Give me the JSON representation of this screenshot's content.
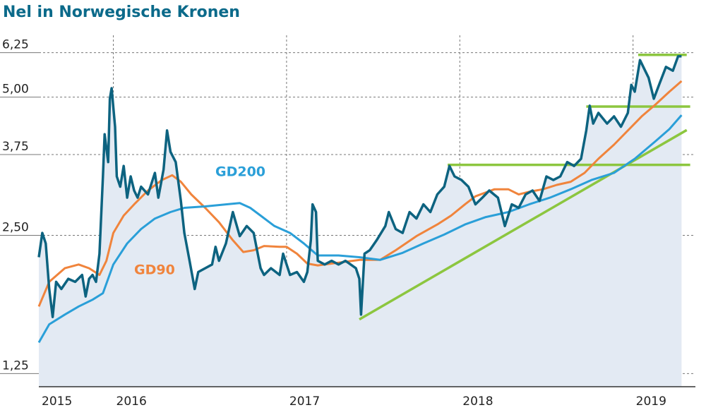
{
  "chart_data": {
    "type": "line",
    "title": "Nel in Norwegische Kronen",
    "log_scale": true,
    "grid": true,
    "xlim": [
      2015.57,
      2019.36
    ],
    "xticks": [
      2015,
      2016,
      2017,
      2018,
      2019
    ],
    "ylim": [
      1.17,
      6.7
    ],
    "yticks": [
      {
        "value": 1.25,
        "label": "1,25"
      },
      {
        "value": 2.5,
        "label": "2,50"
      },
      {
        "value": 3.75,
        "label": "3,75"
      },
      {
        "value": 5,
        "label": "5,00"
      },
      {
        "value": 6.25,
        "label": "6,25"
      }
    ],
    "series": [
      {
        "color": "#0d6380",
        "area_color": "#e3eaf3",
        "x": [
          2015.57,
          2015.59,
          2015.61,
          2015.63,
          2015.65,
          2015.67,
          2015.7,
          2015.74,
          2015.78,
          2015.82,
          2015.84,
          2015.86,
          2015.88,
          2015.9,
          2015.92,
          2015.94,
          2015.95,
          2015.97,
          2015.98,
          2015.99,
          2016.01,
          2016.02,
          2016.04,
          2016.06,
          2016.08,
          2016.1,
          2016.12,
          2016.14,
          2016.16,
          2016.2,
          2016.24,
          2016.26,
          2016.29,
          2016.31,
          2016.33,
          2016.36,
          2016.39,
          2016.41,
          2016.44,
          2016.47,
          2016.49,
          2016.53,
          2016.57,
          2016.59,
          2016.61,
          2016.65,
          2016.69,
          2016.73,
          2016.77,
          2016.81,
          2016.85,
          2016.87,
          2016.91,
          2016.96,
          2016.98,
          2017.02,
          2017.06,
          2017.1,
          2017.12,
          2017.14,
          2017.15,
          2017.17,
          2017.18,
          2017.22,
          2017.26,
          2017.3,
          2017.34,
          2017.4,
          2017.42,
          2017.43,
          2017.45,
          2017.48,
          2017.52,
          2017.57,
          2017.59,
          2017.63,
          2017.67,
          2017.71,
          2017.75,
          2017.79,
          2017.83,
          2017.87,
          2017.91,
          2017.94,
          2017.97,
          2018.01,
          2018.05,
          2018.09,
          2018.13,
          2018.17,
          2018.22,
          2018.26,
          2018.3,
          2018.34,
          2018.38,
          2018.42,
          2018.46,
          2018.5,
          2018.54,
          2018.58,
          2018.62,
          2018.66,
          2018.7,
          2018.73,
          2018.75,
          2018.77,
          2018.8,
          2018.85,
          2018.89,
          2018.93,
          2018.97,
          2018.99,
          2019.01,
          2019.04,
          2019.07,
          2019.09,
          2019.12,
          2019.15,
          2019.19,
          2019.23,
          2019.26,
          2019.28
        ],
        "values": [
          2.24,
          2.53,
          2.4,
          1.91,
          1.66,
          1.98,
          1.91,
          2.01,
          1.98,
          2.05,
          1.84,
          2.01,
          2.05,
          1.98,
          2.28,
          3.36,
          4.15,
          3.61,
          4.96,
          5.23,
          4.31,
          3.36,
          3.19,
          3.54,
          3.02,
          3.36,
          3.13,
          3.02,
          3.19,
          3.07,
          3.42,
          3.02,
          3.48,
          4.23,
          3.8,
          3.61,
          2.97,
          2.53,
          2.2,
          1.91,
          2.08,
          2.12,
          2.16,
          2.36,
          2.2,
          2.4,
          2.81,
          2.49,
          2.62,
          2.53,
          2.12,
          2.05,
          2.12,
          2.05,
          2.28,
          2.05,
          2.08,
          1.98,
          2.08,
          2.44,
          2.92,
          2.81,
          2.2,
          2.16,
          2.2,
          2.16,
          2.2,
          2.12,
          2.01,
          1.68,
          2.28,
          2.32,
          2.44,
          2.62,
          2.81,
          2.58,
          2.53,
          2.81,
          2.72,
          2.92,
          2.81,
          3.07,
          3.19,
          3.54,
          3.36,
          3.3,
          3.19,
          2.92,
          3.02,
          3.13,
          3.02,
          2.62,
          2.92,
          2.87,
          3.07,
          3.13,
          2.97,
          3.36,
          3.3,
          3.36,
          3.61,
          3.54,
          3.67,
          4.23,
          4.79,
          4.38,
          4.62,
          4.38,
          4.54,
          4.31,
          4.62,
          5.32,
          5.14,
          6.02,
          5.71,
          5.51,
          4.96,
          5.32,
          5.82,
          5.71,
          6.14,
          6.14
        ]
      },
      {
        "name": "GD90",
        "color": "#f0843c",
        "x": [
          2015.57,
          2015.63,
          2015.72,
          2015.8,
          2015.86,
          2015.92,
          2015.96,
          2016.0,
          2016.06,
          2016.12,
          2016.2,
          2016.28,
          2016.34,
          2016.39,
          2016.45,
          2016.53,
          2016.61,
          2016.69,
          2016.75,
          2016.81,
          2016.87,
          2016.96,
          2017.0,
          2017.06,
          2017.12,
          2017.18,
          2017.3,
          2017.42,
          2017.54,
          2017.63,
          2017.75,
          2017.87,
          2017.95,
          2018.03,
          2018.09,
          2018.2,
          2018.28,
          2018.34,
          2018.4,
          2018.48,
          2018.56,
          2018.64,
          2018.72,
          2018.8,
          2018.89,
          2018.97,
          2019.05,
          2019.13,
          2019.21,
          2019.28
        ],
        "values": [
          1.75,
          1.98,
          2.12,
          2.16,
          2.12,
          2.05,
          2.2,
          2.53,
          2.76,
          2.92,
          3.13,
          3.3,
          3.38,
          3.27,
          3.07,
          2.87,
          2.67,
          2.44,
          2.3,
          2.32,
          2.37,
          2.36,
          2.36,
          2.28,
          2.17,
          2.15,
          2.18,
          2.21,
          2.21,
          2.32,
          2.49,
          2.64,
          2.76,
          2.92,
          3.04,
          3.15,
          3.15,
          3.07,
          3.11,
          3.15,
          3.22,
          3.27,
          3.42,
          3.67,
          3.94,
          4.23,
          4.54,
          4.82,
          5.14,
          5.42
        ]
      },
      {
        "name": "GD200",
        "color": "#2a9fd8",
        "x": [
          2015.57,
          2015.63,
          2015.72,
          2015.8,
          2015.88,
          2015.94,
          2016.0,
          2016.08,
          2016.16,
          2016.24,
          2016.33,
          2016.41,
          2016.53,
          2016.65,
          2016.73,
          2016.79,
          2016.85,
          2016.93,
          2017.02,
          2017.1,
          2017.18,
          2017.3,
          2017.42,
          2017.54,
          2017.67,
          2017.79,
          2017.91,
          2018.03,
          2018.15,
          2018.28,
          2018.4,
          2018.52,
          2018.64,
          2018.76,
          2018.89,
          2019.01,
          2019.13,
          2019.21,
          2019.28
        ],
        "values": [
          1.46,
          1.6,
          1.68,
          1.75,
          1.81,
          1.87,
          2.16,
          2.4,
          2.58,
          2.72,
          2.81,
          2.87,
          2.89,
          2.92,
          2.94,
          2.87,
          2.76,
          2.62,
          2.53,
          2.4,
          2.26,
          2.26,
          2.24,
          2.21,
          2.29,
          2.4,
          2.51,
          2.64,
          2.74,
          2.81,
          2.92,
          3.02,
          3.15,
          3.3,
          3.42,
          3.67,
          4.01,
          4.26,
          4.57
        ]
      }
    ],
    "trend_lines": [
      {
        "color": "#8cc63f",
        "x": [
          2019.03,
          2019.31
        ],
        "values": [
          6.18,
          6.18
        ]
      },
      {
        "color": "#8cc63f",
        "x": [
          2018.73,
          2019.33
        ],
        "values": [
          4.77,
          4.77
        ]
      },
      {
        "color": "#8cc63f",
        "x": [
          2017.93,
          2019.33
        ],
        "values": [
          3.56,
          3.56
        ]
      },
      {
        "color": "#8cc63f",
        "x": [
          2017.42,
          2019.31
        ],
        "values": [
          1.64,
          4.24
        ]
      }
    ]
  }
}
